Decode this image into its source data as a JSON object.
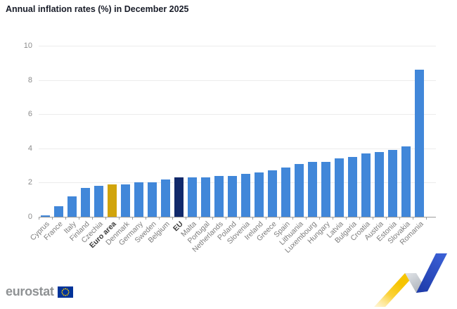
{
  "title": "Annual inflation rates (%) in December 2025",
  "chart_data": {
    "type": "bar",
    "title": "Annual inflation rates (%) in December 2025",
    "categories": [
      "Cyprus",
      "France",
      "Italy",
      "Finland",
      "Czechia",
      "Euro area",
      "Denmark",
      "Germany",
      "Sweden",
      "Belgium",
      "EU",
      "Malta",
      "Portugal",
      "Netherlands",
      "Poland",
      "Slovenia",
      "Ireland",
      "Greece",
      "Spain",
      "Lithuania",
      "Luxembourg",
      "Hungary",
      "Latvia",
      "Bulgaria",
      "Croatia",
      "Austria",
      "Estonia",
      "Slovakia",
      "Romania"
    ],
    "values": [
      0.1,
      0.6,
      1.2,
      1.7,
      1.8,
      1.9,
      1.9,
      2.0,
      2.0,
      2.2,
      2.3,
      2.3,
      2.3,
      2.4,
      2.4,
      2.5,
      2.6,
      2.7,
      2.9,
      3.1,
      3.2,
      3.2,
      3.4,
      3.5,
      3.7,
      3.8,
      3.9,
      4.1,
      8.6
    ],
    "xlabel": "",
    "ylabel": "",
    "ylim": [
      0,
      10
    ],
    "yticks": [
      0,
      2,
      4,
      6,
      8,
      10
    ],
    "grid": "horizontal",
    "legend": "none",
    "highlighted_categories": [
      "Euro area",
      "EU"
    ],
    "colors": {
      "bar_default": "#4187d9",
      "bar_euro_area": "#d1a40b",
      "bar_eu": "#11296b"
    }
  },
  "footer": {
    "logo_text": "eurostat"
  },
  "icons": {
    "flag": "eu-flag-icon",
    "decoration": "trend-ribbon-graphic"
  },
  "colors": {
    "title_text": "#181c28",
    "gridline": "#ececec",
    "axis_line": "#9b9b9b",
    "y_tick_label": "#8c8c8c",
    "category_label": "#7d7d7d",
    "category_label_highlight": "#3a3a3a",
    "logo_text": "#8f9294",
    "flag_blue": "#003399",
    "flag_stars": "#ffcc00",
    "ribbon_yellow": "#f6c400",
    "ribbon_yellow_pale": "#ffefb8",
    "ribbon_gray_light": "#e2e5e9",
    "ribbon_gray_dark": "#aab0b8",
    "ribbon_blue_light": "#3a5fd4",
    "ribbon_blue_dark": "#1f3cab"
  }
}
